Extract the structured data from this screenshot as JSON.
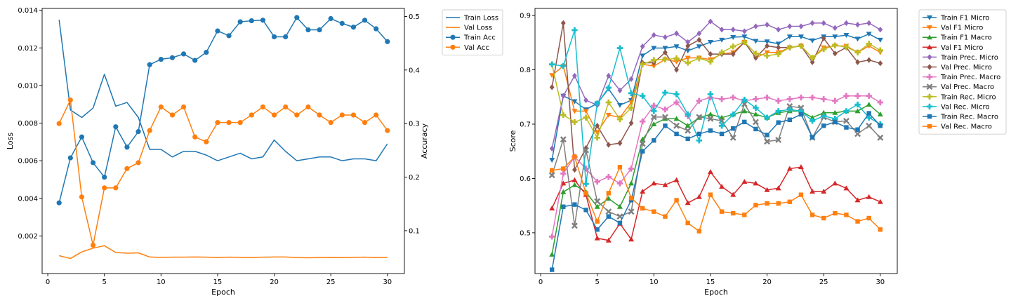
{
  "chart_data": [
    {
      "type": "line",
      "xlabel": "Epoch",
      "ylabel": "Loss",
      "ylabel_right": "Accuracy",
      "xlim": [
        -0.5,
        31.5
      ],
      "ylim": [
        0.0,
        0.0141
      ],
      "ylim_right": [
        0.02,
        0.515
      ],
      "xticks": [
        0,
        5,
        10,
        15,
        20,
        25,
        30
      ],
      "yticks": [
        0.002,
        0.004,
        0.006,
        0.008,
        0.01,
        0.012,
        0.014
      ],
      "ytick_labels": [
        "0.002",
        "0.004",
        "0.006",
        "0.008",
        "0.010",
        "0.012",
        "0.014"
      ],
      "yticks_right": [
        0.1,
        0.2,
        0.3,
        0.4,
        0.5
      ],
      "ytick_labels_right": [
        "0.1",
        "0.2",
        "0.3",
        "0.4",
        "0.5"
      ],
      "grid": false,
      "legend": "outside-right",
      "x": [
        1,
        2,
        3,
        4,
        5,
        6,
        7,
        8,
        9,
        10,
        11,
        12,
        13,
        14,
        15,
        16,
        17,
        18,
        19,
        20,
        21,
        22,
        23,
        24,
        25,
        26,
        27,
        28,
        29,
        30
      ],
      "series": [
        {
          "name": "Train Loss",
          "axis": "left",
          "color": "#1f77b4",
          "marker": "none",
          "values": [
            0.0135,
            0.0087,
            0.0083,
            0.0088,
            0.0106,
            0.0089,
            0.0091,
            0.0083,
            0.0066,
            0.0066,
            0.0062,
            0.0065,
            0.0065,
            0.0063,
            0.006,
            0.0062,
            0.0064,
            0.0061,
            0.0062,
            0.0071,
            0.0065,
            0.006,
            0.0061,
            0.0062,
            0.0062,
            0.006,
            0.0061,
            0.0061,
            0.006,
            0.0069
          ]
        },
        {
          "name": "Val Loss",
          "axis": "left",
          "color": "#ff7f0e",
          "marker": "none",
          "values": [
            0.00095,
            0.0008,
            0.00115,
            0.00135,
            0.00148,
            0.00112,
            0.00108,
            0.0011,
            0.00088,
            0.00086,
            0.00087,
            0.00087,
            0.00088,
            0.00087,
            0.00085,
            0.00087,
            0.00086,
            0.00085,
            0.00087,
            0.00088,
            0.00088,
            0.00085,
            0.00084,
            0.00085,
            0.00086,
            0.00085,
            0.00086,
            0.00087,
            0.00085,
            0.00086
          ]
        },
        {
          "name": "Train Acc",
          "axis": "right",
          "color": "#1f77b4",
          "marker": "circle",
          "values": [
            0.152,
            0.236,
            0.275,
            0.227,
            0.2,
            0.294,
            0.256,
            0.285,
            0.41,
            0.42,
            0.423,
            0.43,
            0.418,
            0.433,
            0.473,
            0.464,
            0.49,
            0.492,
            0.493,
            0.462,
            0.462,
            0.498,
            0.475,
            0.475,
            0.496,
            0.487,
            0.48,
            0.493,
            0.477,
            0.453
          ]
        },
        {
          "name": "Val Acc",
          "axis": "right",
          "color": "#ff7f0e",
          "marker": "circle",
          "values": [
            0.3,
            0.344,
            0.163,
            0.073,
            0.18,
            0.18,
            0.216,
            0.227,
            0.287,
            0.331,
            0.316,
            0.331,
            0.275,
            0.266,
            0.302,
            0.302,
            0.302,
            0.316,
            0.331,
            0.316,
            0.331,
            0.316,
            0.331,
            0.316,
            0.302,
            0.316,
            0.316,
            0.302,
            0.316,
            0.287
          ]
        }
      ]
    },
    {
      "type": "line",
      "xlabel": "Epoch",
      "ylabel": "Score",
      "xlim": [
        -0.5,
        31.5
      ],
      "ylim": [
        0.425,
        0.913
      ],
      "xticks": [
        0,
        5,
        10,
        15,
        20,
        25,
        30
      ],
      "yticks": [
        0.5,
        0.6,
        0.7,
        0.8,
        0.9
      ],
      "ytick_labels": [
        "0.5",
        "0.6",
        "0.7",
        "0.8",
        "0.9"
      ],
      "grid": false,
      "legend": "outside-right",
      "x": [
        1,
        2,
        3,
        4,
        5,
        6,
        7,
        8,
        9,
        10,
        11,
        12,
        13,
        14,
        15,
        16,
        17,
        18,
        19,
        20,
        21,
        22,
        23,
        24,
        25,
        26,
        27,
        28,
        29,
        30
      ],
      "series": [
        {
          "name": "Train F1 Micro",
          "color": "#1f77b4",
          "marker": "tri-down",
          "values": [
            0.634,
            0.752,
            0.742,
            0.727,
            0.738,
            0.765,
            0.735,
            0.744,
            0.826,
            0.84,
            0.84,
            0.843,
            0.835,
            0.843,
            0.851,
            0.855,
            0.86,
            0.861,
            0.853,
            0.852,
            0.848,
            0.861,
            0.861,
            0.854,
            0.861,
            0.861,
            0.864,
            0.857,
            0.866,
            0.855
          ]
        },
        {
          "name": "Val F1 Micro",
          "color": "#ff7f0e",
          "marker": "tri-down",
          "values": [
            0.79,
            0.807,
            0.724,
            0.724,
            0.685,
            0.717,
            0.712,
            0.74,
            0.81,
            0.807,
            0.819,
            0.815,
            0.822,
            0.822,
            0.819,
            0.829,
            0.832,
            0.851,
            0.822,
            0.832,
            0.832,
            0.841,
            0.844,
            0.822,
            0.841,
            0.844,
            0.844,
            0.832,
            0.844,
            0.832
          ]
        },
        {
          "name": "Train F1 Macro",
          "color": "#2ca02c",
          "marker": "tri-up",
          "values": [
            0.46,
            0.575,
            0.588,
            0.575,
            0.548,
            0.563,
            0.548,
            0.591,
            0.672,
            0.7,
            0.71,
            0.71,
            0.697,
            0.712,
            0.718,
            0.712,
            0.718,
            0.724,
            0.718,
            0.712,
            0.721,
            0.724,
            0.724,
            0.712,
            0.721,
            0.721,
            0.724,
            0.724,
            0.736,
            0.718
          ]
        },
        {
          "name": "Val F1 Micro",
          "color": "#d62728",
          "marker": "tri-up",
          "values": [
            0.545,
            0.591,
            0.597,
            0.57,
            0.49,
            0.486,
            0.517,
            0.488,
            0.576,
            0.591,
            0.588,
            0.597,
            0.555,
            0.566,
            0.612,
            0.585,
            0.57,
            0.594,
            0.591,
            0.579,
            0.582,
            0.618,
            0.621,
            0.576,
            0.576,
            0.591,
            0.582,
            0.56,
            0.566,
            0.557
          ]
        },
        {
          "name": "Train Prec. Micro",
          "color": "#9467bd",
          "marker": "diamond",
          "values": [
            0.655,
            0.752,
            0.789,
            0.744,
            0.735,
            0.789,
            0.762,
            0.783,
            0.843,
            0.864,
            0.86,
            0.867,
            0.851,
            0.867,
            0.889,
            0.874,
            0.874,
            0.871,
            0.88,
            0.883,
            0.874,
            0.88,
            0.88,
            0.886,
            0.886,
            0.877,
            0.886,
            0.883,
            0.886,
            0.874
          ]
        },
        {
          "name": "Val Prec. Micro",
          "color": "#8c564b",
          "marker": "diamond",
          "values": [
            0.768,
            0.886,
            0.616,
            0.656,
            0.697,
            0.662,
            0.665,
            0.702,
            0.813,
            0.813,
            0.832,
            0.8,
            0.844,
            0.855,
            0.829,
            0.829,
            0.829,
            0.851,
            0.822,
            0.844,
            0.841,
            0.841,
            0.844,
            0.814,
            0.858,
            0.83,
            0.841,
            0.814,
            0.818,
            0.812
          ]
        },
        {
          "name": "Train Prec. Macro",
          "color": "#e377c2",
          "marker": "plus",
          "values": [
            0.493,
            0.609,
            0.64,
            0.618,
            0.594,
            0.603,
            0.591,
            0.618,
            0.705,
            0.734,
            0.727,
            0.74,
            0.715,
            0.743,
            0.749,
            0.746,
            0.749,
            0.743,
            0.746,
            0.749,
            0.743,
            0.746,
            0.749,
            0.749,
            0.746,
            0.743,
            0.752,
            0.752,
            0.752,
            0.74
          ]
        },
        {
          "name": "Val Prec. Macro",
          "color": "#7f7f7f",
          "marker": "x",
          "values": [
            0.606,
            0.672,
            0.513,
            0.652,
            0.558,
            0.539,
            0.53,
            0.539,
            0.664,
            0.713,
            0.713,
            0.697,
            0.688,
            0.713,
            0.71,
            0.706,
            0.675,
            0.737,
            0.704,
            0.668,
            0.671,
            0.733,
            0.73,
            0.675,
            0.713,
            0.704,
            0.706,
            0.682,
            0.697,
            0.675
          ]
        },
        {
          "name": "Train Rec. Micro",
          "color": "#bcbd22",
          "marker": "plus",
          "values": [
            0.81,
            0.717,
            0.704,
            0.712,
            0.675,
            0.74,
            0.709,
            0.73,
            0.81,
            0.818,
            0.819,
            0.821,
            0.813,
            0.821,
            0.815,
            0.832,
            0.843,
            0.851,
            0.83,
            0.826,
            0.829,
            0.841,
            0.844,
            0.822,
            0.838,
            0.845,
            0.842,
            0.832,
            0.848,
            0.836
          ]
        },
        {
          "name": "Val Rec. Micro",
          "color": "#17becf",
          "marker": "plus",
          "values": [
            0.81,
            0.807,
            0.873,
            0.59,
            0.738,
            0.767,
            0.84,
            0.757,
            0.752,
            0.724,
            0.758,
            0.755,
            0.718,
            0.67,
            0.755,
            0.697,
            0.718,
            0.745,
            0.73,
            0.712,
            0.724,
            0.727,
            0.724,
            0.706,
            0.715,
            0.71,
            0.724,
            0.736,
            0.712,
            0.7
          ]
        },
        {
          "name": "Train Rec. Macro",
          "color": "#1f77b4",
          "marker": "square",
          "values": [
            0.432,
            0.548,
            0.552,
            0.542,
            0.506,
            0.53,
            0.518,
            0.56,
            0.65,
            0.67,
            0.697,
            0.682,
            0.673,
            0.682,
            0.688,
            0.682,
            0.692,
            0.704,
            0.691,
            0.68,
            0.703,
            0.708,
            0.718,
            0.676,
            0.697,
            0.704,
            0.694,
            0.69,
            0.72,
            0.697
          ]
        },
        {
          "name": "Val Rec. Macro",
          "color": "#ff7f0e",
          "marker": "square",
          "values": [
            0.615,
            0.618,
            0.64,
            0.573,
            0.521,
            0.573,
            0.621,
            0.564,
            0.545,
            0.539,
            0.53,
            0.56,
            0.518,
            0.503,
            0.57,
            0.539,
            0.536,
            0.533,
            0.551,
            0.554,
            0.554,
            0.557,
            0.57,
            0.533,
            0.527,
            0.536,
            0.533,
            0.521,
            0.527,
            0.506
          ]
        }
      ]
    }
  ]
}
